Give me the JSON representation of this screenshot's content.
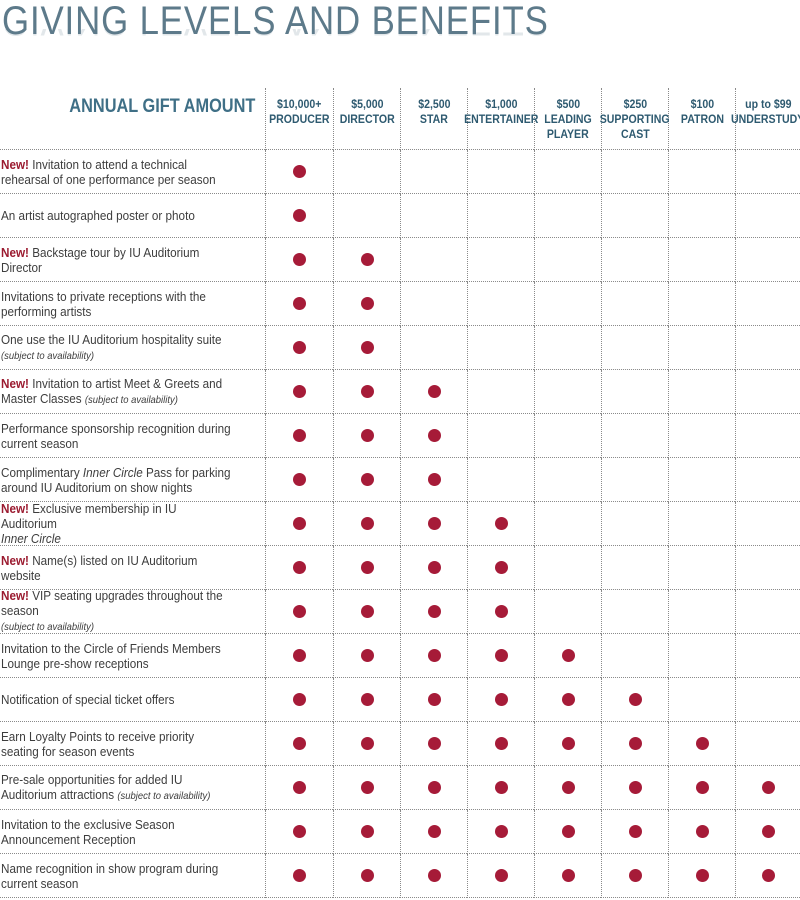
{
  "title": "GIVING LEVELS AND BENEFITS",
  "gift_amount_label": "ANNUAL GIFT AMOUNT",
  "new_label": "New!",
  "levels": [
    {
      "amount": "$10,000+",
      "name": [
        "PRODUCER"
      ]
    },
    {
      "amount": "$5,000",
      "name": [
        "DIRECTOR"
      ]
    },
    {
      "amount": "$2,500",
      "name": [
        "STAR"
      ]
    },
    {
      "amount": "$1,000",
      "name": [
        "ENTERTAINER"
      ]
    },
    {
      "amount": "$500",
      "name": [
        "LEADING",
        "PLAYER"
      ]
    },
    {
      "amount": "$250",
      "name": [
        "SUPPORTING",
        "CAST"
      ]
    },
    {
      "amount": "$100",
      "name": [
        "PATRON"
      ]
    },
    {
      "amount": "up to $99",
      "name": [
        "UNDERSTUDY"
      ]
    }
  ],
  "benefits": [
    {
      "new": true,
      "parts": [
        {
          "t": "Invitation to attend a technical rehearsal of one performance per season"
        }
      ],
      "levels": 1
    },
    {
      "new": false,
      "parts": [
        {
          "t": "An artist autographed poster or photo"
        }
      ],
      "levels": 1
    },
    {
      "new": true,
      "parts": [
        {
          "t": "Backstage tour by IU Auditorium Director"
        }
      ],
      "levels": 2
    },
    {
      "new": false,
      "parts": [
        {
          "t": "Invitations to private receptions with  the performing artists"
        }
      ],
      "levels": 2
    },
    {
      "new": false,
      "parts": [
        {
          "t": "One use the IU Auditorium hospitality suite "
        },
        {
          "t": "(subject to availability)",
          "note": true,
          "br": true
        }
      ],
      "levels": 2
    },
    {
      "new": true,
      "parts": [
        {
          "t": "Invitation to artist Meet & Greets and Master Classes "
        },
        {
          "t": "(subject to availability)",
          "note": true
        }
      ],
      "levels": 3
    },
    {
      "new": false,
      "parts": [
        {
          "t": "Performance sponsorship recognition during current season"
        }
      ],
      "levels": 3
    },
    {
      "new": false,
      "parts": [
        {
          "t": "Complimentary "
        },
        {
          "t": "Inner Circle",
          "em": true
        },
        {
          "t": " Pass for parking around IU Auditorium on show nights"
        }
      ],
      "levels": 3
    },
    {
      "new": true,
      "parts": [
        {
          "t": "Exclusive membership in IU Auditorium "
        },
        {
          "t": "Inner Circle",
          "em": true,
          "br": true
        }
      ],
      "levels": 4
    },
    {
      "new": true,
      "parts": [
        {
          "t": "Name(s) listed on IU Auditorium website"
        }
      ],
      "levels": 4
    },
    {
      "new": true,
      "parts": [
        {
          "t": "VIP seating upgrades throughout the season "
        },
        {
          "t": "(subject to availability)",
          "note": true,
          "br": true
        }
      ],
      "levels": 4
    },
    {
      "new": false,
      "parts": [
        {
          "t": "Invitation to the Circle of Friends Members Lounge pre-show receptions"
        }
      ],
      "levels": 5
    },
    {
      "new": false,
      "parts": [
        {
          "t": "Notification of special ticket offers"
        }
      ],
      "levels": 6
    },
    {
      "new": false,
      "parts": [
        {
          "t": "Earn Loyalty Points to receive priority seating for season events"
        }
      ],
      "levels": 7
    },
    {
      "new": false,
      "parts": [
        {
          "t": "Pre-sale opportunities for added IU Auditorium attractions "
        },
        {
          "t": "(subject to availability)",
          "note": true
        }
      ],
      "levels": 8
    },
    {
      "new": false,
      "parts": [
        {
          "t": "Invitation to the exclusive Season Announcement Reception"
        }
      ],
      "levels": 8
    },
    {
      "new": false,
      "parts": [
        {
          "t": "Name recognition in show program during current season"
        }
      ],
      "levels": 8
    }
  ],
  "colors": {
    "dot": "#a61b38",
    "new": "#9b1b30",
    "title": "#5d7a8a",
    "header": "#2e5a70"
  }
}
